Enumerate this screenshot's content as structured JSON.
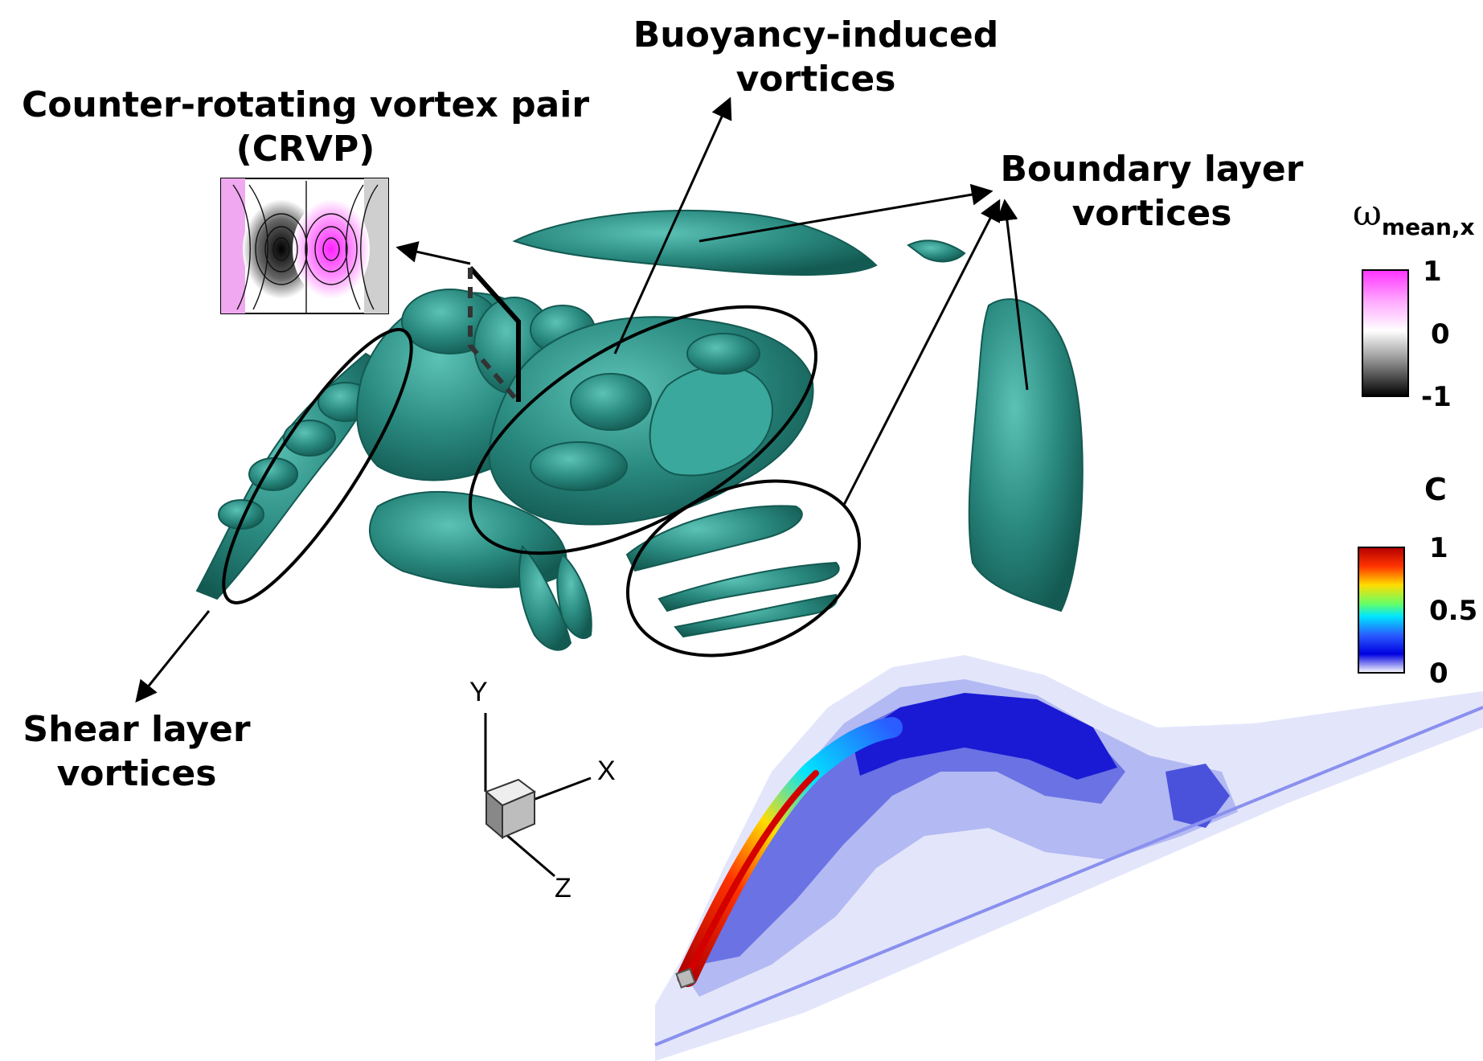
{
  "labels": {
    "crvp_line1": "Counter-rotating vortex pair",
    "crvp_line2": "(CRVP)",
    "buoyancy_line1": "Buoyancy-induced",
    "buoyancy_line2": "vortices",
    "boundary_line1": "Boundary layer",
    "boundary_line2": "vortices",
    "shear_line1": "Shear layer",
    "shear_line2": "vortices"
  },
  "axes_triad": {
    "x": "X",
    "y": "Y",
    "z": "Z"
  },
  "colorbar_omega": {
    "title_symbol": "ω",
    "title_subscript": "mean,x",
    "ticks": [
      "1",
      "0",
      "-1"
    ],
    "colors": [
      "#ff33ff",
      "#ffffff",
      "#000000"
    ]
  },
  "colorbar_c": {
    "title": "C",
    "ticks": [
      "1",
      "0.5",
      "0"
    ],
    "colors": [
      "#cc0000",
      "#ffcc00",
      "#00ffff",
      "#0000ff",
      "#ffffff"
    ]
  },
  "colors": {
    "isosurface": "#2a8a80",
    "isosurface_highlight": "#52b8ad",
    "isosurface_shadow": "#14574f",
    "plume_light": "#c9cdf5",
    "plume_mid": "#7f86e8",
    "plume_dark": "#1818d0"
  }
}
